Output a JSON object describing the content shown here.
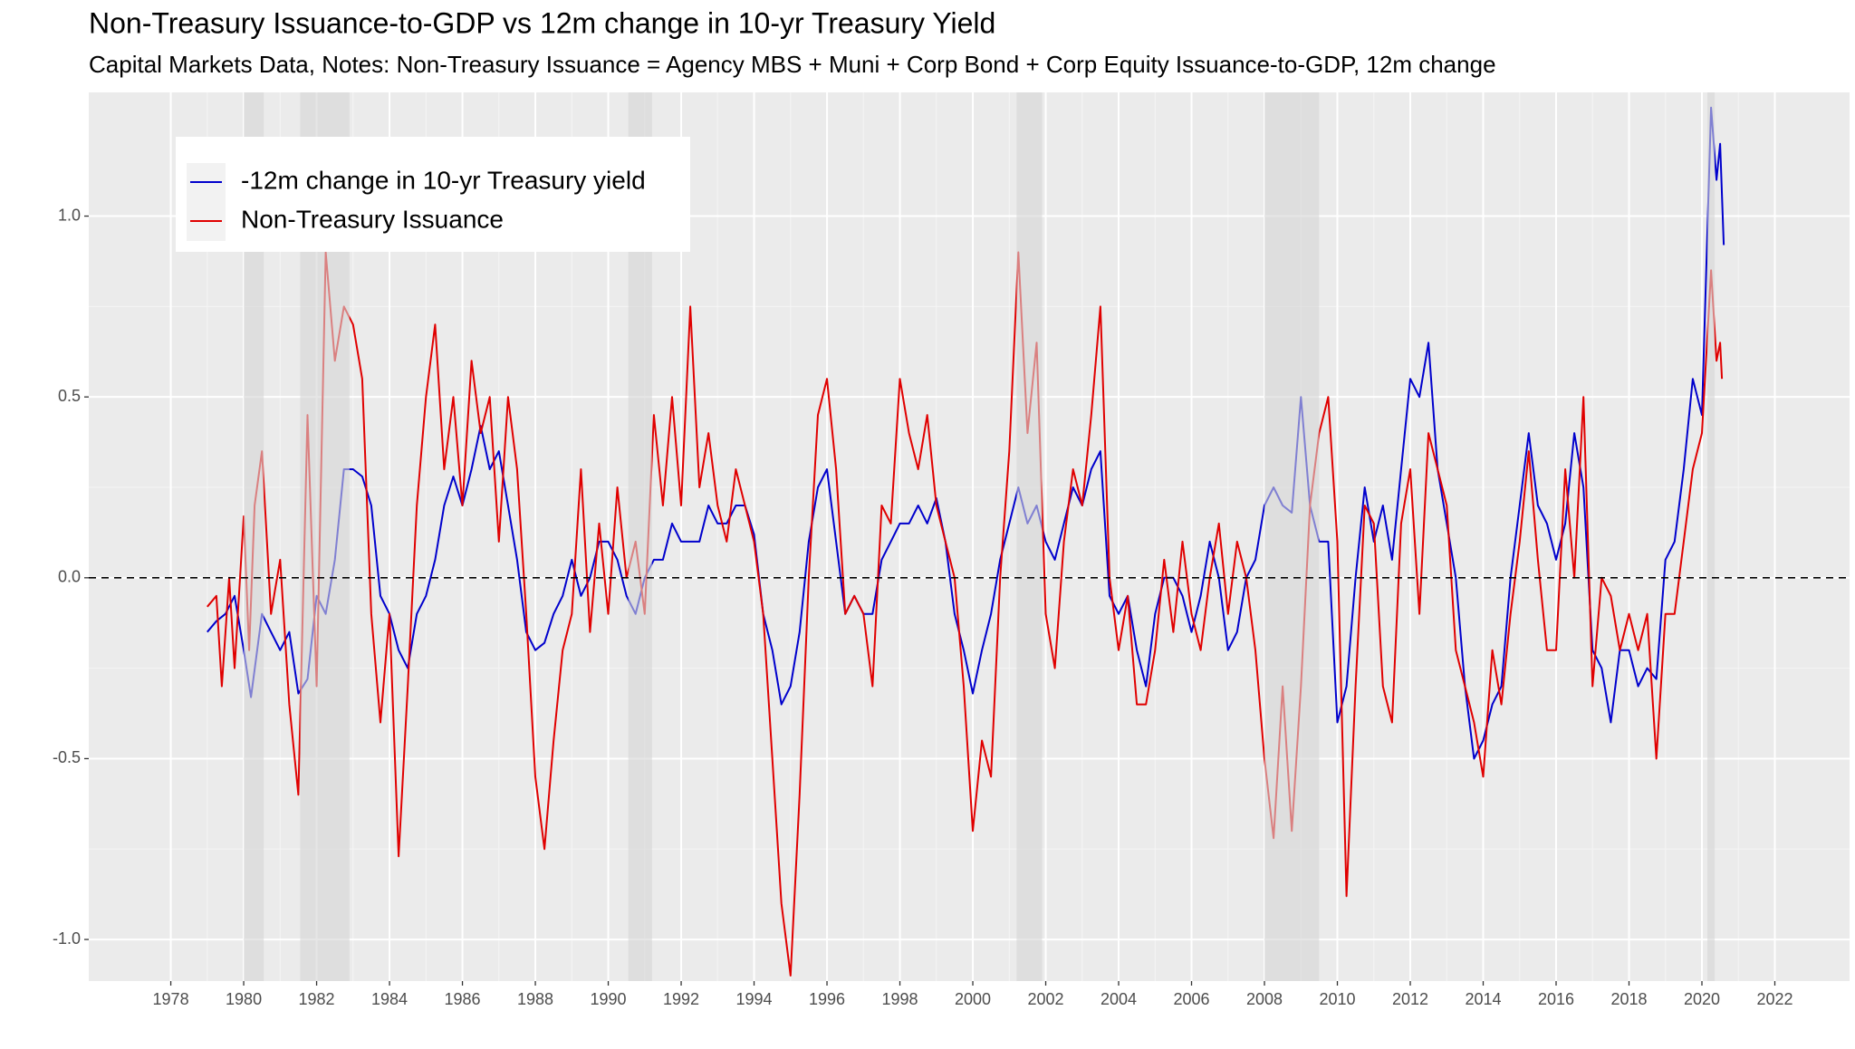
{
  "chart_data": {
    "type": "line",
    "title": "Non-Treasury Issuance-to-GDP vs 12m change in 10-yr Treasury Yield",
    "subtitle": "Capital Markets Data, Notes: Non-Treasury Issuance = Agency MBS + Muni + Corp Bond + Corp Equity Issuance-to-GDP, 12m change",
    "xlim": [
      1975.75,
      2024.05
    ],
    "xticks": [
      1978,
      1980,
      1982,
      1984,
      1986,
      1988,
      1990,
      1992,
      1994,
      1996,
      1998,
      2000,
      2002,
      2004,
      2006,
      2008,
      2010,
      2012,
      2014,
      2016,
      2018,
      2020,
      2022
    ],
    "ylim": [
      -1.115,
      1.342
    ],
    "yticks": [
      {
        "value": -1,
        "label": "-1.0"
      },
      {
        "value": -0.5,
        "label": "-0.5"
      },
      {
        "value": 0,
        "label": "0.0"
      },
      {
        "value": 0.5,
        "label": "0.5"
      },
      {
        "value": 1,
        "label": "1.0"
      }
    ],
    "grid": true,
    "legend": "top-left",
    "reference_line": 0,
    "recessions": [
      [
        1980.0,
        1980.55
      ],
      [
        1981.55,
        1982.9
      ],
      [
        1990.55,
        1991.2
      ],
      [
        2001.2,
        2001.9
      ],
      [
        2008.0,
        2009.5
      ],
      [
        2020.15,
        2020.35
      ]
    ],
    "series": [
      {
        "name": "-12m change in 10-yr Treasury yield",
        "color": "#0000cc",
        "x": [
          1979.0,
          1979.25,
          1979.5,
          1979.75,
          1980.0,
          1980.2,
          1980.5,
          1980.75,
          1981.0,
          1981.25,
          1981.5,
          1981.75,
          1982.0,
          1982.25,
          1982.5,
          1982.75,
          1983.0,
          1983.25,
          1983.5,
          1983.75,
          1984.0,
          1984.25,
          1984.5,
          1984.75,
          1985.0,
          1985.25,
          1985.5,
          1985.75,
          1986.0,
          1986.25,
          1986.5,
          1986.75,
          1987.0,
          1987.25,
          1987.5,
          1987.75,
          1988.0,
          1988.25,
          1988.5,
          1988.75,
          1989.0,
          1989.25,
          1989.5,
          1989.75,
          1990.0,
          1990.25,
          1990.5,
          1990.75,
          1991.0,
          1991.25,
          1991.5,
          1991.75,
          1992.0,
          1992.25,
          1992.5,
          1992.75,
          1993.0,
          1993.25,
          1993.5,
          1993.75,
          1994.0,
          1994.25,
          1994.5,
          1994.75,
          1995.0,
          1995.25,
          1995.5,
          1995.75,
          1996.0,
          1996.25,
          1996.5,
          1996.75,
          1997.0,
          1997.25,
          1997.5,
          1997.75,
          1998.0,
          1998.25,
          1998.5,
          1998.75,
          1999.0,
          1999.25,
          1999.5,
          1999.75,
          2000.0,
          2000.25,
          2000.5,
          2000.75,
          2001.0,
          2001.25,
          2001.5,
          2001.75,
          2002.0,
          2002.25,
          2002.5,
          2002.75,
          2003.0,
          2003.25,
          2003.5,
          2003.75,
          2004.0,
          2004.25,
          2004.5,
          2004.75,
          2005.0,
          2005.25,
          2005.5,
          2005.75,
          2006.0,
          2006.25,
          2006.5,
          2006.75,
          2007.0,
          2007.25,
          2007.5,
          2007.75,
          2008.0,
          2008.25,
          2008.5,
          2008.75,
          2009.0,
          2009.25,
          2009.5,
          2009.75,
          2010.0,
          2010.25,
          2010.5,
          2010.75,
          2011.0,
          2011.25,
          2011.5,
          2011.75,
          2012.0,
          2012.25,
          2012.5,
          2012.75,
          2013.0,
          2013.25,
          2013.5,
          2013.75,
          2014.0,
          2014.25,
          2014.5,
          2014.75,
          2015.0,
          2015.25,
          2015.5,
          2015.75,
          2016.0,
          2016.25,
          2016.5,
          2016.75,
          2017.0,
          2017.25,
          2017.5,
          2017.75,
          2018.0,
          2018.25,
          2018.5,
          2018.75,
          2019.0,
          2019.25,
          2019.5,
          2019.75,
          2020.0,
          2020.25,
          2020.4,
          2020.5,
          2020.6
        ],
        "values": [
          -0.15,
          -0.12,
          -0.1,
          -0.05,
          -0.2,
          -0.33,
          -0.1,
          -0.15,
          -0.2,
          -0.15,
          -0.32,
          -0.28,
          -0.05,
          -0.1,
          0.05,
          0.3,
          0.3,
          0.28,
          0.2,
          -0.05,
          -0.1,
          -0.2,
          -0.25,
          -0.1,
          -0.05,
          0.05,
          0.2,
          0.28,
          0.2,
          0.3,
          0.42,
          0.3,
          0.35,
          0.2,
          0.05,
          -0.15,
          -0.2,
          -0.18,
          -0.1,
          -0.05,
          0.05,
          -0.05,
          0.0,
          0.1,
          0.1,
          0.05,
          -0.05,
          -0.1,
          0.0,
          0.05,
          0.05,
          0.15,
          0.1,
          0.1,
          0.1,
          0.2,
          0.15,
          0.15,
          0.2,
          0.2,
          0.12,
          -0.1,
          -0.2,
          -0.35,
          -0.3,
          -0.15,
          0.1,
          0.25,
          0.3,
          0.1,
          -0.1,
          -0.05,
          -0.1,
          -0.1,
          0.05,
          0.1,
          0.15,
          0.15,
          0.2,
          0.15,
          0.22,
          0.1,
          -0.1,
          -0.2,
          -0.32,
          -0.2,
          -0.1,
          0.05,
          0.15,
          0.25,
          0.15,
          0.2,
          0.1,
          0.05,
          0.15,
          0.25,
          0.2,
          0.3,
          0.35,
          -0.05,
          -0.1,
          -0.05,
          -0.2,
          -0.3,
          -0.1,
          0.0,
          0.0,
          -0.05,
          -0.15,
          -0.05,
          0.1,
          0.0,
          -0.2,
          -0.15,
          0.0,
          0.05,
          0.2,
          0.25,
          0.2,
          0.18,
          0.5,
          0.2,
          0.1,
          0.1,
          -0.4,
          -0.3,
          0.0,
          0.25,
          0.1,
          0.2,
          0.05,
          0.3,
          0.55,
          0.5,
          0.65,
          0.3,
          0.15,
          0.0,
          -0.3,
          -0.5,
          -0.45,
          -0.35,
          -0.3,
          0.0,
          0.2,
          0.4,
          0.2,
          0.15,
          0.05,
          0.15,
          0.4,
          0.25,
          -0.2,
          -0.25,
          -0.4,
          -0.2,
          -0.2,
          -0.3,
          -0.25,
          -0.28,
          0.05,
          0.1,
          0.3,
          0.55,
          0.45,
          1.3,
          1.1,
          1.2,
          0.92
        ]
      },
      {
        "name": "Non-Treasury Issuance",
        "color": "#e00000",
        "x": [
          1979.0,
          1979.25,
          1979.4,
          1979.6,
          1979.75,
          1980.0,
          1980.15,
          1980.3,
          1980.5,
          1980.75,
          1981.0,
          1981.25,
          1981.5,
          1981.75,
          1982.0,
          1982.25,
          1982.5,
          1982.75,
          1983.0,
          1983.25,
          1983.5,
          1983.75,
          1984.0,
          1984.25,
          1984.5,
          1984.75,
          1985.0,
          1985.25,
          1985.5,
          1985.75,
          1986.0,
          1986.25,
          1986.5,
          1986.75,
          1987.0,
          1987.25,
          1987.5,
          1987.75,
          1988.0,
          1988.25,
          1988.5,
          1988.75,
          1989.0,
          1989.25,
          1989.5,
          1989.75,
          1990.0,
          1990.25,
          1990.5,
          1990.75,
          1991.0,
          1991.25,
          1991.5,
          1991.75,
          1992.0,
          1992.25,
          1992.5,
          1992.75,
          1993.0,
          1993.25,
          1993.5,
          1993.75,
          1994.0,
          1994.25,
          1994.5,
          1994.75,
          1995.0,
          1995.25,
          1995.5,
          1995.75,
          1996.0,
          1996.25,
          1996.5,
          1996.75,
          1997.0,
          1997.25,
          1997.5,
          1997.75,
          1998.0,
          1998.25,
          1998.5,
          1998.75,
          1999.0,
          1999.25,
          1999.5,
          1999.75,
          2000.0,
          2000.25,
          2000.5,
          2000.75,
          2001.0,
          2001.25,
          2001.5,
          2001.75,
          2002.0,
          2002.25,
          2002.5,
          2002.75,
          2003.0,
          2003.25,
          2003.5,
          2003.75,
          2004.0,
          2004.25,
          2004.5,
          2004.75,
          2005.0,
          2005.25,
          2005.5,
          2005.75,
          2006.0,
          2006.25,
          2006.5,
          2006.75,
          2007.0,
          2007.25,
          2007.5,
          2007.75,
          2008.0,
          2008.25,
          2008.5,
          2008.75,
          2009.0,
          2009.25,
          2009.5,
          2009.75,
          2010.0,
          2010.25,
          2010.5,
          2010.75,
          2011.0,
          2011.25,
          2011.5,
          2011.75,
          2012.0,
          2012.25,
          2012.5,
          2012.75,
          2013.0,
          2013.25,
          2013.5,
          2013.75,
          2014.0,
          2014.25,
          2014.5,
          2014.75,
          2015.0,
          2015.25,
          2015.5,
          2015.75,
          2016.0,
          2016.25,
          2016.5,
          2016.75,
          2017.0,
          2017.25,
          2017.5,
          2017.75,
          2018.0,
          2018.25,
          2018.5,
          2018.75,
          2019.0,
          2019.25,
          2019.5,
          2019.75,
          2020.0,
          2020.25,
          2020.4,
          2020.5,
          2020.55
        ],
        "values": [
          -0.08,
          -0.05,
          -0.3,
          0.0,
          -0.25,
          0.17,
          -0.2,
          0.2,
          0.35,
          -0.1,
          0.05,
          -0.35,
          -0.6,
          0.45,
          -0.3,
          0.9,
          0.6,
          0.75,
          0.7,
          0.55,
          -0.1,
          -0.4,
          -0.1,
          -0.77,
          -0.3,
          0.2,
          0.5,
          0.7,
          0.3,
          0.5,
          0.2,
          0.6,
          0.4,
          0.5,
          0.1,
          0.5,
          0.3,
          -0.1,
          -0.55,
          -0.75,
          -0.45,
          -0.2,
          -0.1,
          0.3,
          -0.15,
          0.15,
          -0.1,
          0.25,
          0.0,
          0.1,
          -0.1,
          0.45,
          0.2,
          0.5,
          0.2,
          0.75,
          0.25,
          0.4,
          0.2,
          0.1,
          0.3,
          0.2,
          0.1,
          -0.1,
          -0.5,
          -0.9,
          -1.1,
          -0.6,
          0.0,
          0.45,
          0.55,
          0.3,
          -0.1,
          -0.05,
          -0.1,
          -0.3,
          0.2,
          0.15,
          0.55,
          0.4,
          0.3,
          0.45,
          0.2,
          0.1,
          0.0,
          -0.3,
          -0.7,
          -0.45,
          -0.55,
          0.0,
          0.35,
          0.9,
          0.4,
          0.65,
          -0.1,
          -0.25,
          0.1,
          0.3,
          0.2,
          0.45,
          0.75,
          0.0,
          -0.2,
          -0.05,
          -0.35,
          -0.35,
          -0.2,
          0.05,
          -0.15,
          0.1,
          -0.1,
          -0.2,
          0.0,
          0.15,
          -0.1,
          0.1,
          0.0,
          -0.2,
          -0.5,
          -0.72,
          -0.3,
          -0.7,
          -0.3,
          0.2,
          0.4,
          0.5,
          0.1,
          -0.88,
          -0.3,
          0.2,
          0.15,
          -0.3,
          -0.4,
          0.15,
          0.3,
          -0.1,
          0.4,
          0.3,
          0.2,
          -0.2,
          -0.3,
          -0.4,
          -0.55,
          -0.2,
          -0.35,
          -0.1,
          0.1,
          0.35,
          0.05,
          -0.2,
          -0.2,
          0.3,
          0.0,
          0.5,
          -0.3,
          0.0,
          -0.05,
          -0.2,
          -0.1,
          -0.2,
          -0.1,
          -0.5,
          -0.1,
          -0.1,
          0.1,
          0.3,
          0.4,
          0.85,
          0.6,
          0.65,
          0.55
        ]
      }
    ]
  }
}
